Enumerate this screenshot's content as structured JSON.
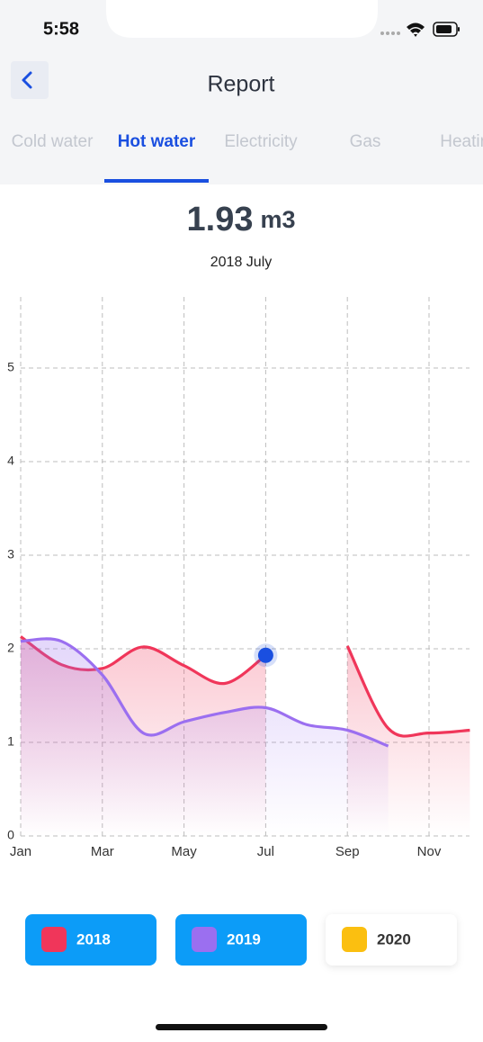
{
  "status_bar": {
    "time": "5:58"
  },
  "header": {
    "title": "Report"
  },
  "tabs": [
    "Cold water",
    "Hot water",
    "Electricity",
    "Gas",
    "Heating"
  ],
  "active_tab": 1,
  "reading": {
    "value": "1.93",
    "unit": "m3",
    "period": "2018 July"
  },
  "chart_data": {
    "type": "line",
    "categories": [
      "Jan",
      null,
      "Mar",
      null,
      "May",
      null,
      "Jul",
      null,
      "Sep",
      null,
      "Nov",
      null
    ],
    "series": [
      {
        "name": "2018",
        "color": "#f0365a",
        "selected": true,
        "values": [
          2.13,
          1.83,
          1.79,
          2.02,
          1.82,
          1.63,
          1.93,
          null,
          2.03,
          1.15,
          1.1,
          1.13
        ]
      },
      {
        "name": "2019",
        "color": "#9b6ff0",
        "selected": true,
        "values": [
          2.08,
          2.08,
          1.72,
          1.1,
          1.22,
          1.32,
          1.37,
          1.19,
          1.13,
          0.96,
          null,
          null
        ]
      },
      {
        "name": "2020",
        "color": "#fbbf10",
        "selected": false,
        "values": [
          null,
          null,
          null,
          null,
          null,
          null,
          null,
          null,
          null,
          null,
          null,
          null
        ]
      }
    ],
    "ylim": [
      0,
      5.76
    ],
    "yticks": [
      0,
      1,
      2,
      3,
      4,
      5
    ],
    "grid": true,
    "highlight": {
      "series": 0,
      "index": 6
    }
  }
}
